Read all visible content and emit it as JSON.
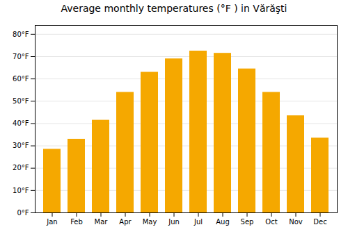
{
  "chart_data": {
    "type": "bar",
    "title": "Average monthly temperatures (°F ) in Vărăşti",
    "categories": [
      "Jan",
      "Feb",
      "Mar",
      "Apr",
      "May",
      "Jun",
      "Jul",
      "Aug",
      "Sep",
      "Oct",
      "Nov",
      "Dec"
    ],
    "values": [
      28.5,
      33,
      41.5,
      54,
      63,
      69,
      72.5,
      71.5,
      64.5,
      54,
      43.5,
      33.5
    ],
    "color": "#F5A800",
    "ylim": [
      0,
      84
    ],
    "yticks": [
      {
        "value": 0,
        "label": "0°F"
      },
      {
        "value": 10,
        "label": "10°F"
      },
      {
        "value": 20,
        "label": "20°F"
      },
      {
        "value": 30,
        "label": "30°F"
      },
      {
        "value": 40,
        "label": "40°F"
      },
      {
        "value": 50,
        "label": "50°F"
      },
      {
        "value": 60,
        "label": "60°F"
      },
      {
        "value": 70,
        "label": "70°F"
      },
      {
        "value": 80,
        "label": "80°F"
      }
    ],
    "grid": true
  }
}
